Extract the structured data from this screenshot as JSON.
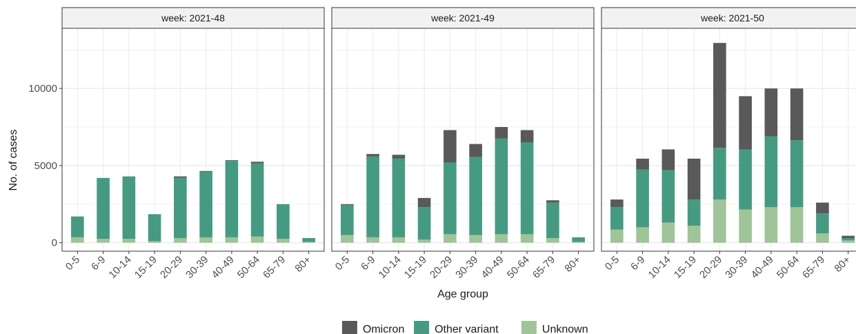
{
  "chart_data": {
    "type": "bar",
    "stacked": true,
    "xlabel": "Age group",
    "ylabel": "No. of cases",
    "ylim": [
      -550,
      13900
    ],
    "yticks": [
      0,
      5000,
      10000
    ],
    "categories": [
      "0-5",
      "6-9",
      "10-14",
      "15-19",
      "20-29",
      "30-39",
      "40-49",
      "50-64",
      "65-79",
      "80+"
    ],
    "legend": {
      "position": "bottom",
      "entries": [
        {
          "name": "Omicron",
          "color": "#595959"
        },
        {
          "name": "Other variant",
          "color": "#449b82"
        },
        {
          "name": "Unknown",
          "color": "#9fc497"
        }
      ]
    },
    "panels": [
      {
        "label": "week: 2021-48",
        "series": [
          {
            "name": "Unknown",
            "values": [
              350,
              250,
              250,
              100,
              300,
              350,
              350,
              400,
              250,
              50
            ]
          },
          {
            "name": "Other variant",
            "values": [
              1350,
              3950,
              4050,
              1750,
              3900,
              4250,
              4950,
              4750,
              2250,
              250
            ]
          },
          {
            "name": "Omicron",
            "values": [
              0,
              0,
              0,
              0,
              100,
              50,
              50,
              100,
              0,
              0
            ]
          }
        ]
      },
      {
        "label": "week: 2021-49",
        "series": [
          {
            "name": "Unknown",
            "values": [
              500,
              350,
              350,
              200,
              550,
              500,
              550,
              550,
              300,
              50
            ]
          },
          {
            "name": "Other variant",
            "values": [
              1950,
              5250,
              5100,
              2100,
              4650,
              5050,
              6200,
              5950,
              2300,
              300
            ]
          },
          {
            "name": "Omicron",
            "values": [
              50,
              150,
              250,
              600,
              2100,
              850,
              750,
              800,
              150,
              0
            ]
          }
        ]
      },
      {
        "label": "week: 2021-50",
        "series": [
          {
            "name": "Unknown",
            "values": [
              850,
              1000,
              1300,
              1100,
              2800,
              2150,
              2300,
              2300,
              600,
              150
            ]
          },
          {
            "name": "Other variant",
            "values": [
              1450,
              3750,
              3400,
              1700,
              3350,
              3900,
              4600,
              4350,
              1300,
              150
            ]
          },
          {
            "name": "Omicron",
            "values": [
              500,
              700,
              1350,
              2650,
              6800,
              3450,
              3100,
              3350,
              700,
              150
            ]
          }
        ]
      }
    ]
  }
}
